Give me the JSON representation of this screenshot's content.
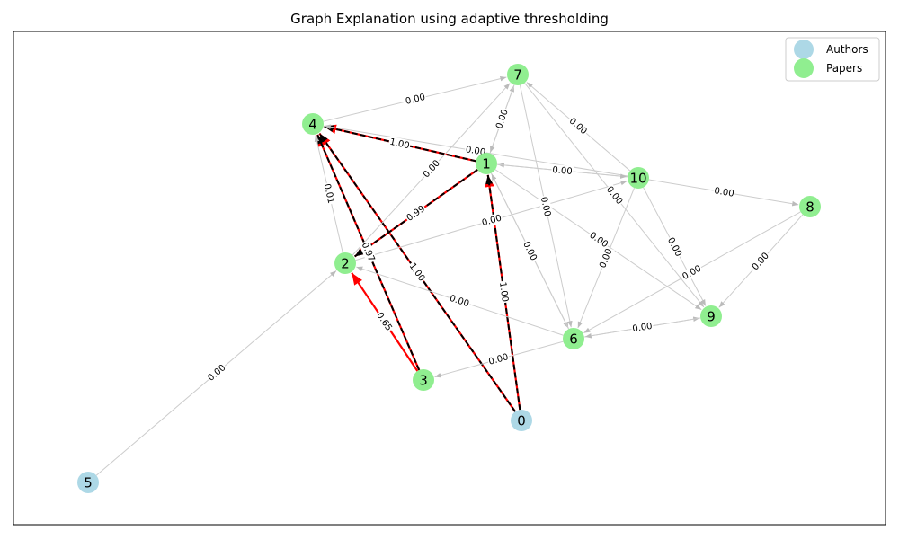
{
  "title": "Graph Explanation using adaptive thresholding",
  "legend": {
    "placement": "top-right",
    "items": [
      {
        "label": "Authors",
        "color": "#add8e6"
      },
      {
        "label": "Papers",
        "color": "#90ee90"
      }
    ]
  },
  "colors": {
    "author": "#add8e6",
    "paper": "#90ee90",
    "weak_edge": "#cccccc",
    "highlight_edge": "#ff0000",
    "dashed_overlay": "#000000"
  },
  "nodes": [
    {
      "id": "0",
      "type": "author"
    },
    {
      "id": "1",
      "type": "paper"
    },
    {
      "id": "2",
      "type": "paper"
    },
    {
      "id": "3",
      "type": "paper"
    },
    {
      "id": "4",
      "type": "paper"
    },
    {
      "id": "5",
      "type": "author"
    },
    {
      "id": "6",
      "type": "paper"
    },
    {
      "id": "7",
      "type": "paper"
    },
    {
      "id": "8",
      "type": "paper"
    },
    {
      "id": "9",
      "type": "paper"
    },
    {
      "id": "10",
      "type": "paper"
    }
  ],
  "edges": [
    {
      "source": "0",
      "target": "1",
      "label": "1.00",
      "style": "highlight"
    },
    {
      "source": "0",
      "target": "4",
      "label": "1.00",
      "style": "highlight"
    },
    {
      "source": "1",
      "target": "4",
      "label": "1.00",
      "style": "highlight"
    },
    {
      "source": "1",
      "target": "2",
      "label": "0.99",
      "style": "highlight"
    },
    {
      "source": "3",
      "target": "4",
      "label": "0.97",
      "style": "highlight"
    },
    {
      "source": "3",
      "target": "2",
      "label": "0.65",
      "style": "red"
    },
    {
      "source": "2",
      "target": "4",
      "label": "0.01",
      "style": "weak"
    },
    {
      "source": "4",
      "target": "7",
      "label": "0.00",
      "style": "weak"
    },
    {
      "source": "10",
      "target": "4",
      "label": "0.00",
      "style": "weak"
    },
    {
      "source": "1",
      "target": "7",
      "label": "0.00",
      "style": "weak"
    },
    {
      "source": "7",
      "target": "1",
      "label": "0.00",
      "style": "weak"
    },
    {
      "source": "10",
      "target": "7",
      "label": "0.00",
      "style": "weak"
    },
    {
      "source": "10",
      "target": "1",
      "label": "0.00",
      "style": "weak"
    },
    {
      "source": "1",
      "target": "10",
      "label": "0.00",
      "style": "weak"
    },
    {
      "source": "10",
      "target": "8",
      "label": "0.00",
      "style": "weak"
    },
    {
      "source": "1",
      "target": "6",
      "label": "0.00",
      "style": "weak"
    },
    {
      "source": "6",
      "target": "1",
      "label": "0.00",
      "style": "weak"
    },
    {
      "source": "1",
      "target": "9",
      "label": "0.00",
      "style": "weak"
    },
    {
      "source": "10",
      "target": "6",
      "label": "0.00",
      "style": "weak"
    },
    {
      "source": "10",
      "target": "9",
      "label": "0.00",
      "style": "weak"
    },
    {
      "source": "7",
      "target": "9",
      "label": "0.00",
      "style": "weak"
    },
    {
      "source": "8",
      "target": "9",
      "label": "0.00",
      "style": "weak"
    },
    {
      "source": "8",
      "target": "6",
      "label": "0.00",
      "style": "weak"
    },
    {
      "source": "6",
      "target": "9",
      "label": "0.00",
      "style": "weak"
    },
    {
      "source": "9",
      "target": "6",
      "label": "0.00",
      "style": "weak"
    },
    {
      "source": "6",
      "target": "2",
      "label": "0.00",
      "style": "weak"
    },
    {
      "source": "6",
      "target": "3",
      "label": "0.00",
      "style": "weak"
    },
    {
      "source": "2",
      "target": "10",
      "label": "0.00",
      "style": "weak"
    },
    {
      "source": "5",
      "target": "2",
      "label": "0.00",
      "style": "weak"
    },
    {
      "source": "7",
      "target": "6",
      "label": "0.00",
      "style": "weak"
    },
    {
      "source": "2",
      "target": "7",
      "label": "0.00",
      "style": "weak"
    }
  ]
}
